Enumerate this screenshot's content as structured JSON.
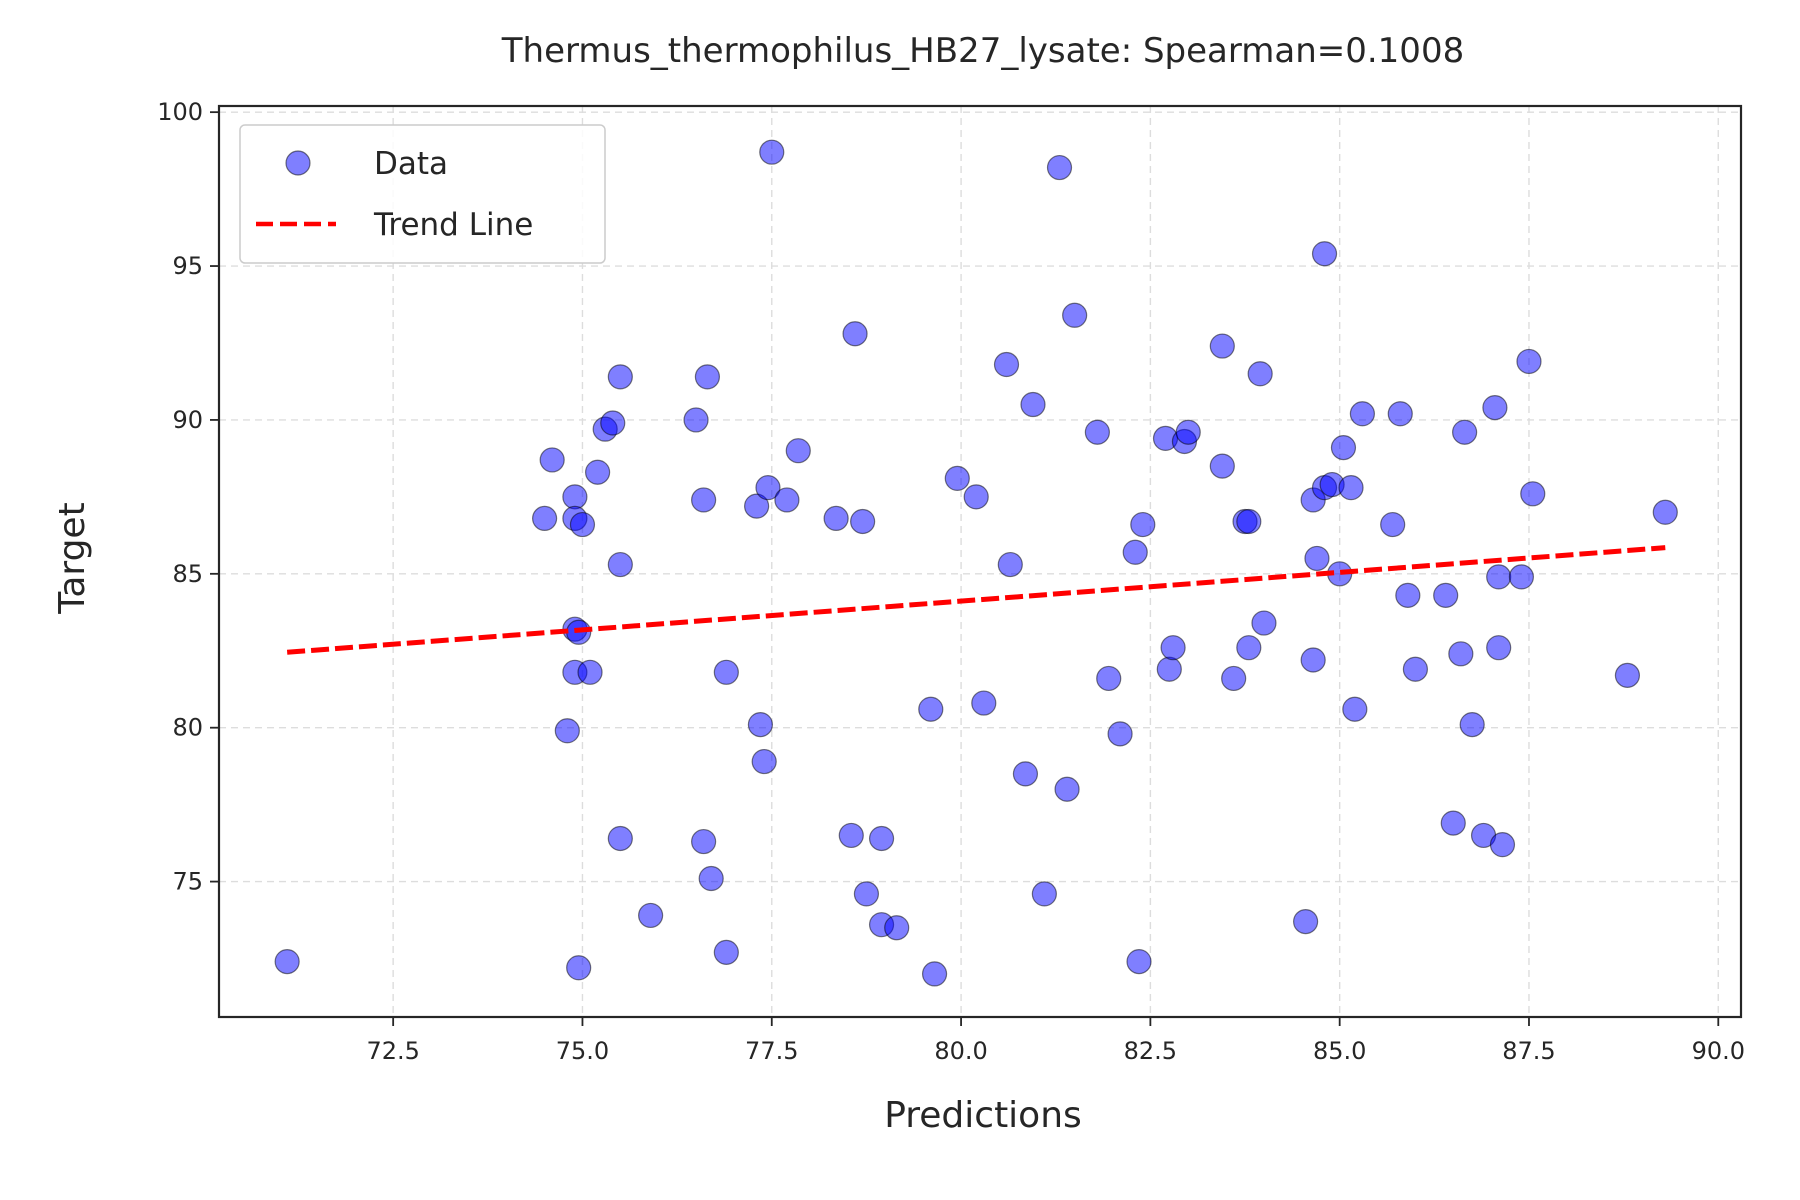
{
  "chart_data": {
    "type": "scatter",
    "title": "Thermus_thermophilus_HB27_lysate: Spearman=0.1008",
    "xlabel": "Predictions",
    "ylabel": "Target",
    "xlim": [
      70.2,
      90.3
    ],
    "ylim": [
      70.6,
      100.2
    ],
    "xticks": [
      "72.5",
      "75.0",
      "77.5",
      "80.0",
      "82.5",
      "85.0",
      "87.5",
      "90.0"
    ],
    "yticks": [
      "75",
      "80",
      "85",
      "90",
      "95",
      "100"
    ],
    "grid": true,
    "legend_position": "top-left",
    "colors": {
      "points": "#0000ff",
      "trend": "#ff0000"
    },
    "series": [
      {
        "name": "Data",
        "kind": "scatter",
        "points": [
          [
            71.1,
            72.4
          ],
          [
            74.5,
            86.8
          ],
          [
            74.6,
            88.7
          ],
          [
            74.8,
            79.9
          ],
          [
            74.9,
            81.8
          ],
          [
            74.9,
            87.5
          ],
          [
            74.9,
            86.8
          ],
          [
            74.9,
            83.2
          ],
          [
            74.95,
            83.1
          ],
          [
            74.95,
            72.2
          ],
          [
            75.0,
            86.6
          ],
          [
            75.1,
            81.8
          ],
          [
            75.2,
            88.3
          ],
          [
            75.3,
            89.7
          ],
          [
            75.4,
            89.9
          ],
          [
            75.5,
            91.4
          ],
          [
            75.5,
            85.3
          ],
          [
            75.5,
            76.4
          ],
          [
            75.9,
            73.9
          ],
          [
            76.5,
            90.0
          ],
          [
            76.6,
            87.4
          ],
          [
            76.6,
            76.3
          ],
          [
            76.65,
            91.4
          ],
          [
            76.7,
            75.1
          ],
          [
            76.9,
            81.8
          ],
          [
            76.9,
            72.7
          ],
          [
            77.3,
            87.2
          ],
          [
            77.35,
            80.1
          ],
          [
            77.4,
            78.9
          ],
          [
            77.45,
            87.8
          ],
          [
            77.5,
            98.7
          ],
          [
            77.7,
            87.4
          ],
          [
            77.85,
            89.0
          ],
          [
            78.35,
            86.8
          ],
          [
            78.55,
            76.5
          ],
          [
            78.6,
            92.8
          ],
          [
            78.7,
            86.7
          ],
          [
            78.75,
            74.6
          ],
          [
            78.95,
            73.6
          ],
          [
            78.95,
            76.4
          ],
          [
            79.15,
            73.5
          ],
          [
            79.6,
            80.6
          ],
          [
            79.65,
            72.0
          ],
          [
            79.95,
            88.1
          ],
          [
            80.2,
            87.5
          ],
          [
            80.3,
            80.8
          ],
          [
            80.6,
            91.8
          ],
          [
            80.65,
            85.3
          ],
          [
            80.85,
            78.5
          ],
          [
            80.95,
            90.5
          ],
          [
            81.1,
            74.6
          ],
          [
            81.3,
            98.2
          ],
          [
            81.4,
            78.0
          ],
          [
            81.5,
            93.4
          ],
          [
            81.8,
            89.6
          ],
          [
            81.95,
            81.6
          ],
          [
            82.1,
            79.8
          ],
          [
            82.3,
            85.7
          ],
          [
            82.35,
            72.4
          ],
          [
            82.4,
            86.6
          ],
          [
            82.7,
            89.4
          ],
          [
            82.75,
            81.9
          ],
          [
            82.8,
            82.6
          ],
          [
            82.95,
            89.3
          ],
          [
            83.0,
            89.6
          ],
          [
            83.45,
            88.5
          ],
          [
            83.45,
            92.4
          ],
          [
            83.6,
            81.6
          ],
          [
            83.75,
            86.7
          ],
          [
            83.8,
            82.6
          ],
          [
            83.8,
            86.7
          ],
          [
            83.95,
            91.5
          ],
          [
            84.0,
            83.4
          ],
          [
            84.55,
            73.7
          ],
          [
            84.65,
            87.4
          ],
          [
            84.65,
            82.2
          ],
          [
            84.7,
            85.5
          ],
          [
            84.8,
            95.4
          ],
          [
            84.8,
            87.8
          ],
          [
            84.9,
            87.9
          ],
          [
            85.0,
            85.0
          ],
          [
            85.05,
            89.1
          ],
          [
            85.15,
            87.8
          ],
          [
            85.2,
            80.6
          ],
          [
            85.3,
            90.2
          ],
          [
            85.7,
            86.6
          ],
          [
            85.8,
            90.2
          ],
          [
            85.9,
            84.3
          ],
          [
            86.0,
            81.9
          ],
          [
            86.4,
            84.3
          ],
          [
            86.5,
            76.9
          ],
          [
            86.6,
            82.4
          ],
          [
            86.65,
            89.6
          ],
          [
            86.75,
            80.1
          ],
          [
            86.9,
            76.5
          ],
          [
            87.05,
            90.4
          ],
          [
            87.1,
            82.6
          ],
          [
            87.1,
            84.9
          ],
          [
            87.15,
            76.2
          ],
          [
            87.4,
            84.9
          ],
          [
            87.5,
            91.9
          ],
          [
            87.55,
            87.6
          ],
          [
            88.8,
            81.7
          ],
          [
            89.3,
            87.0
          ]
        ]
      },
      {
        "name": "Trend Line",
        "kind": "line",
        "points": [
          [
            71.1,
            82.45
          ],
          [
            89.3,
            85.85
          ]
        ]
      }
    ]
  }
}
